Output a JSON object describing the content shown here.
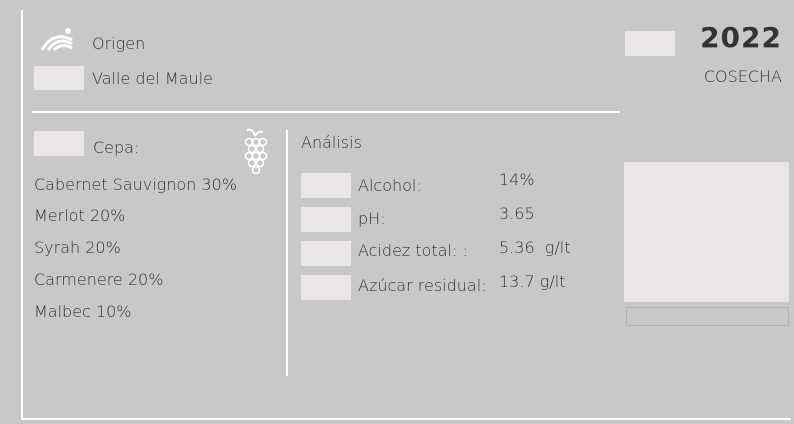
{
  "origin": {
    "label": "Origen",
    "value": "Valle del Maule"
  },
  "vintage": {
    "year": "2022",
    "label": "COSECHA"
  },
  "grapes": {
    "label": "Cepa:",
    "items": [
      "Cabernet Sauvignon 30%",
      "Merlot 20%",
      "Syrah 20%",
      "Carmenere 20%",
      "Malbec 10%"
    ]
  },
  "analysis": {
    "title": "Análisis",
    "rows": [
      {
        "label": "Alcohol:",
        "value": "14%"
      },
      {
        "label": "pH:",
        "value": "3.65"
      },
      {
        "label": "Acidez total: :",
        "value": "5.36  g/lt"
      },
      {
        "label": "Azúcar residual:",
        "value": "13.7 g/lt"
      }
    ]
  }
}
